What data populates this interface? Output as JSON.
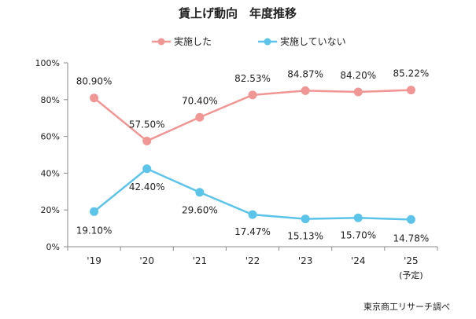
{
  "chart_data": {
    "type": "line",
    "title": "賃上げ動向　年度推移",
    "categories": [
      "'19",
      "'20",
      "'21",
      "'22",
      "'23",
      "'24",
      "'25"
    ],
    "category_note": "(予定)",
    "yaxis": {
      "min": 0,
      "max": 100,
      "ticks": [
        0,
        20,
        40,
        60,
        80,
        100
      ],
      "tick_labels": [
        "0%",
        "20%",
        "40%",
        "60%",
        "80%",
        "100%"
      ]
    },
    "grid": false,
    "legend_position": "top",
    "series": [
      {
        "name": "実施した",
        "color": "#F09694",
        "values": [
          80.9,
          57.5,
          70.4,
          82.53,
          84.87,
          84.2,
          85.22
        ],
        "labels": [
          "80.90%",
          "57.50%",
          "70.40%",
          "82.53%",
          "84.87%",
          "84.20%",
          "85.22%"
        ]
      },
      {
        "name": "実施していない",
        "color": "#5BC4E8",
        "values": [
          19.1,
          42.4,
          29.6,
          17.47,
          15.13,
          15.7,
          14.78
        ],
        "labels": [
          "19.10%",
          "42.40%",
          "29.60%",
          "17.47%",
          "15.13%",
          "15.70%",
          "14.78%"
        ]
      }
    ],
    "source": "東京商工リサーチ調べ"
  }
}
